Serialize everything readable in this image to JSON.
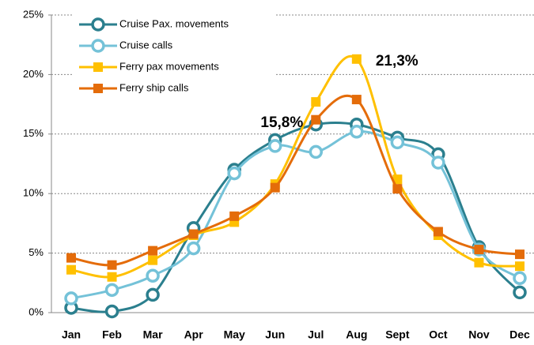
{
  "chart_data": {
    "type": "line",
    "categories": [
      "Jan",
      "Feb",
      "Mar",
      "Apr",
      "May",
      "Jun",
      "Jul",
      "Aug",
      "Sept",
      "Oct",
      "Nov",
      "Dec"
    ],
    "series": [
      {
        "name": "Cruise Pax. movements",
        "color": "#2b7f8e",
        "marker": "circle",
        "values": [
          0.4,
          0.1,
          1.5,
          7.1,
          12.0,
          14.5,
          15.8,
          15.8,
          14.7,
          13.3,
          5.5,
          1.7
        ]
      },
      {
        "name": "Cruise calls",
        "color": "#74c2d8",
        "marker": "circle",
        "values": [
          1.2,
          1.9,
          3.1,
          5.4,
          11.7,
          14.0,
          13.5,
          15.2,
          14.3,
          12.6,
          5.3,
          2.9
        ]
      },
      {
        "name": "Ferry pax movements",
        "color": "#ffc000",
        "marker": "square",
        "values": [
          3.6,
          3.0,
          4.4,
          6.5,
          7.6,
          10.8,
          17.7,
          21.3,
          11.2,
          6.5,
          4.2,
          3.9
        ]
      },
      {
        "name": "Ferry ship calls",
        "color": "#e46c0a",
        "marker": "square",
        "values": [
          4.6,
          4.0,
          5.2,
          6.6,
          8.1,
          10.5,
          16.2,
          17.9,
          10.4,
          6.8,
          5.3,
          4.9
        ]
      }
    ],
    "ylim": [
      0,
      25
    ],
    "yticks": [
      {
        "value": 0,
        "label": "0%"
      },
      {
        "value": 5,
        "label": "5%"
      },
      {
        "value": 10,
        "label": "10%"
      },
      {
        "value": 15,
        "label": "15%"
      },
      {
        "value": 20,
        "label": "20%"
      },
      {
        "value": 25,
        "label": "25%"
      }
    ],
    "grid": true,
    "legend": "upper left",
    "annotations": [
      {
        "text": "15,8%",
        "category": 6,
        "value": 15.8
      },
      {
        "text": "21,3%",
        "category": 7,
        "value": 21.3
      }
    ]
  }
}
